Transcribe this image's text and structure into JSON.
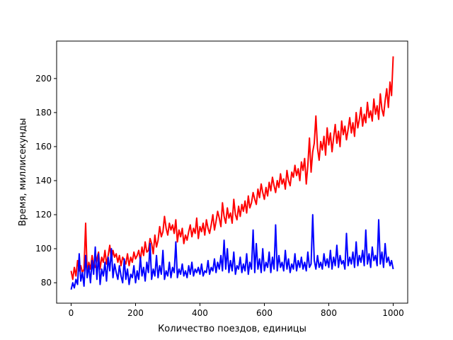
{
  "chart_data": {
    "type": "line",
    "title": "",
    "xlabel": "Количество поездов, единицы",
    "ylabel": "Время, миллисекунды",
    "xlim": [
      -45,
      1045
    ],
    "ylim": [
      68,
      222
    ],
    "xticks": [
      0,
      200,
      400,
      600,
      800,
      1000
    ],
    "yticks": [
      80,
      100,
      120,
      140,
      160,
      180,
      200
    ],
    "grid": false,
    "series": [
      {
        "color": "#ff0000",
        "x": [
          0,
          5,
          10,
          15,
          20,
          25,
          30,
          35,
          40,
          45,
          50,
          55,
          60,
          65,
          70,
          75,
          80,
          85,
          90,
          95,
          100,
          105,
          110,
          115,
          120,
          125,
          130,
          135,
          140,
          145,
          150,
          155,
          160,
          165,
          170,
          175,
          180,
          185,
          190,
          195,
          200,
          205,
          210,
          215,
          220,
          225,
          230,
          235,
          240,
          245,
          250,
          255,
          260,
          265,
          270,
          275,
          280,
          285,
          290,
          295,
          300,
          305,
          310,
          315,
          320,
          325,
          330,
          335,
          340,
          345,
          350,
          355,
          360,
          365,
          370,
          375,
          380,
          385,
          390,
          395,
          400,
          405,
          410,
          415,
          420,
          425,
          430,
          435,
          440,
          445,
          450,
          455,
          460,
          465,
          470,
          475,
          480,
          485,
          490,
          495,
          500,
          505,
          510,
          515,
          520,
          525,
          530,
          535,
          540,
          545,
          550,
          555,
          560,
          565,
          570,
          575,
          580,
          585,
          590,
          595,
          600,
          605,
          610,
          615,
          620,
          625,
          630,
          635,
          640,
          645,
          650,
          655,
          660,
          665,
          670,
          675,
          680,
          685,
          690,
          695,
          700,
          705,
          710,
          715,
          720,
          725,
          730,
          735,
          740,
          745,
          750,
          755,
          760,
          765,
          770,
          775,
          780,
          785,
          790,
          795,
          800,
          805,
          810,
          815,
          820,
          825,
          830,
          835,
          840,
          845,
          850,
          855,
          860,
          865,
          870,
          875,
          880,
          885,
          890,
          895,
          900,
          905,
          910,
          915,
          920,
          925,
          930,
          935,
          940,
          945,
          950,
          955,
          960,
          965,
          970,
          975,
          980,
          985,
          990,
          995,
          1000
        ],
        "y": [
          87,
          82,
          89,
          84,
          93,
          87,
          90,
          86,
          88,
          115,
          85,
          92,
          88,
          96,
          90,
          89,
          94,
          98,
          88,
          95,
          92,
          99,
          91,
          96,
          102,
          93,
          99,
          95,
          97,
          92,
          96,
          90,
          95,
          93,
          91,
          97,
          90,
          95,
          92,
          98,
          94,
          96,
          99,
          93,
          101,
          96,
          104,
          98,
          99,
          106,
          103,
          97,
          108,
          101,
          105,
          113,
          107,
          110,
          119,
          112,
          108,
          115,
          111,
          114,
          109,
          117,
          104,
          111,
          107,
          112,
          103,
          108,
          105,
          110,
          114,
          107,
          112,
          109,
          118,
          106,
          113,
          110,
          115,
          108,
          117,
          112,
          109,
          114,
          120,
          111,
          116,
          122,
          118,
          113,
          127,
          119,
          115,
          124,
          118,
          121,
          115,
          129,
          120,
          117,
          125,
          119,
          126,
          122,
          128,
          121,
          131,
          124,
          127,
          133,
          129,
          126,
          135,
          130,
          138,
          133,
          129,
          136,
          131,
          139,
          134,
          142,
          137,
          133,
          140,
          136,
          144,
          138,
          141,
          135,
          146,
          140,
          137,
          145,
          142,
          149,
          143,
          147,
          140,
          151,
          146,
          153,
          138,
          149,
          165,
          145,
          157,
          162,
          178,
          159,
          152,
          163,
          158,
          166,
          155,
          171,
          161,
          168,
          157,
          165,
          173,
          162,
          169,
          160,
          175,
          167,
          172,
          164,
          170,
          177,
          168,
          174,
          166,
          180,
          171,
          176,
          183,
          172,
          179,
          174,
          186,
          177,
          181,
          175,
          188,
          179,
          184,
          176,
          191,
          182,
          178,
          187,
          194,
          183,
          198,
          190,
          213
        ]
      },
      {
        "color": "#0000ff",
        "x": [
          0,
          5,
          10,
          15,
          20,
          25,
          30,
          35,
          40,
          45,
          50,
          55,
          60,
          65,
          70,
          75,
          80,
          85,
          90,
          95,
          100,
          105,
          110,
          115,
          120,
          125,
          130,
          135,
          140,
          145,
          150,
          155,
          160,
          165,
          170,
          175,
          180,
          185,
          190,
          195,
          200,
          205,
          210,
          215,
          220,
          225,
          230,
          235,
          240,
          245,
          250,
          255,
          260,
          265,
          270,
          275,
          280,
          285,
          290,
          295,
          300,
          305,
          310,
          315,
          320,
          325,
          330,
          335,
          340,
          345,
          350,
          355,
          360,
          365,
          370,
          375,
          380,
          385,
          390,
          395,
          400,
          405,
          410,
          415,
          420,
          425,
          430,
          435,
          440,
          445,
          450,
          455,
          460,
          465,
          470,
          475,
          480,
          485,
          490,
          495,
          500,
          505,
          510,
          515,
          520,
          525,
          530,
          535,
          540,
          545,
          550,
          555,
          560,
          565,
          570,
          575,
          580,
          585,
          590,
          595,
          600,
          605,
          610,
          615,
          620,
          625,
          630,
          635,
          640,
          645,
          650,
          655,
          660,
          665,
          670,
          675,
          680,
          685,
          690,
          695,
          700,
          705,
          710,
          715,
          720,
          725,
          730,
          735,
          740,
          745,
          750,
          755,
          760,
          765,
          770,
          775,
          780,
          785,
          790,
          795,
          800,
          805,
          810,
          815,
          820,
          825,
          830,
          835,
          840,
          845,
          850,
          855,
          860,
          865,
          870,
          875,
          880,
          885,
          890,
          895,
          900,
          905,
          910,
          915,
          920,
          925,
          930,
          935,
          940,
          945,
          950,
          955,
          960,
          965,
          970,
          975,
          980,
          985,
          990,
          995,
          1000
        ],
        "y": [
          76,
          80,
          77,
          82,
          79,
          97,
          81,
          86,
          78,
          96,
          83,
          90,
          80,
          93,
          85,
          101,
          82,
          97,
          79,
          88,
          84,
          92,
          81,
          95,
          87,
          100,
          83,
          91,
          86,
          82,
          90,
          84,
          80,
          94,
          82,
          88,
          79,
          85,
          83,
          90,
          80,
          87,
          82,
          95,
          84,
          89,
          81,
          92,
          86,
          103,
          82,
          88,
          84,
          96,
          83,
          90,
          85,
          99,
          82,
          87,
          84,
          92,
          83,
          89,
          86,
          104,
          83,
          88,
          85,
          91,
          84,
          87,
          83,
          90,
          85,
          92,
          84,
          88,
          86,
          89,
          85,
          91,
          84,
          87,
          86,
          93,
          85,
          89,
          87,
          94,
          86,
          92,
          88,
          96,
          87,
          105,
          88,
          100,
          86,
          93,
          87,
          98,
          85,
          90,
          88,
          95,
          86,
          91,
          87,
          97,
          85,
          92,
          88,
          111,
          86,
          103,
          88,
          94,
          86,
          100,
          87,
          92,
          89,
          98,
          86,
          95,
          88,
          114,
          87,
          96,
          89,
          92,
          87,
          99,
          88,
          94,
          86,
          91,
          88,
          97,
          87,
          93,
          89,
          95,
          88,
          92,
          87,
          98,
          89,
          91,
          120,
          93,
          88,
          96,
          89,
          92,
          88,
          97,
          90,
          94,
          89,
          99,
          88,
          95,
          90,
          102,
          89,
          96,
          91,
          93,
          88,
          109,
          90,
          95,
          91,
          98,
          89,
          104,
          90,
          96,
          92,
          99,
          90,
          111,
          91,
          97,
          89,
          101,
          93,
          96,
          90,
          117,
          91,
          98,
          89,
          103,
          92,
          95,
          90,
          93,
          88
        ]
      }
    ]
  }
}
